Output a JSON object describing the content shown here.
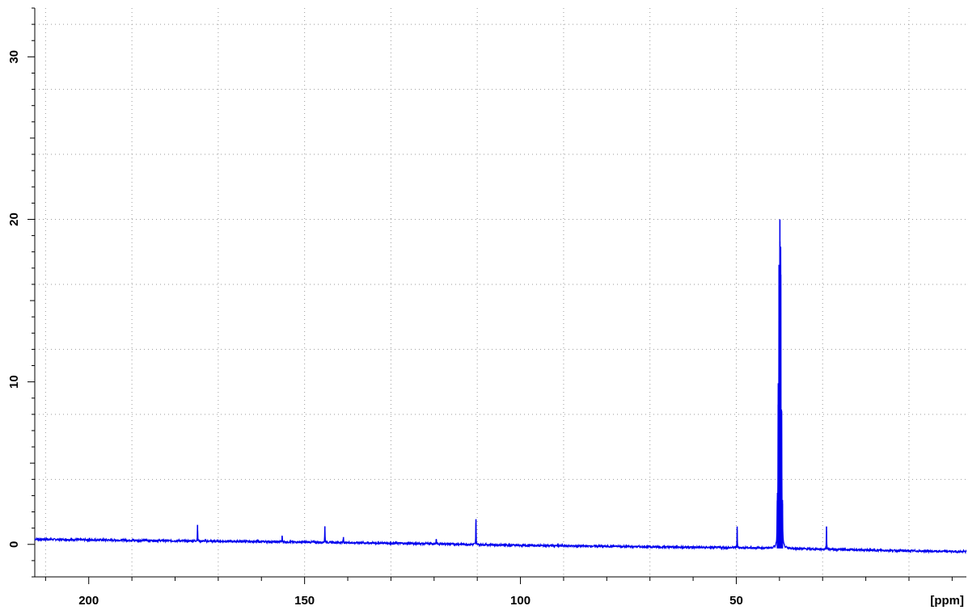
{
  "chart_data": {
    "type": "line",
    "title": "",
    "xlabel": "",
    "x_unit": "[ppm]",
    "ylabel": "",
    "xlim": [
      212.5,
      -3.3
    ],
    "ylim": [
      -2,
      33
    ],
    "x_reversed": true,
    "grid": true,
    "x_major_ticks": [
      200,
      150,
      100,
      50
    ],
    "y_major_ticks": [
      0,
      10,
      20,
      30
    ],
    "line_color": "#0000ee",
    "baseline": [
      {
        "x": 212.5,
        "y": 0.32
      },
      {
        "x": 180,
        "y": 0.22
      },
      {
        "x": 150,
        "y": 0.14
      },
      {
        "x": 120,
        "y": 0.04
      },
      {
        "x": 100,
        "y": -0.06
      },
      {
        "x": 80,
        "y": -0.12
      },
      {
        "x": 60,
        "y": -0.18
      },
      {
        "x": 45,
        "y": -0.22
      },
      {
        "x": 30,
        "y": -0.3
      },
      {
        "x": 10,
        "y": -0.4
      },
      {
        "x": -3.3,
        "y": -0.45
      }
    ],
    "peaks": [
      {
        "x": 174.8,
        "y": 1.2
      },
      {
        "x": 155.2,
        "y": 0.5
      },
      {
        "x": 145.3,
        "y": 1.1
      },
      {
        "x": 141.0,
        "y": 0.45
      },
      {
        "x": 119.5,
        "y": 0.3
      },
      {
        "x": 110.3,
        "y": 1.55
      },
      {
        "x": 49.8,
        "y": 1.1
      },
      {
        "x": 40.5,
        "y": 2.7
      },
      {
        "x": 40.3,
        "y": 8.6
      },
      {
        "x": 40.1,
        "y": 17.2
      },
      {
        "x": 39.9,
        "y": 20.0
      },
      {
        "x": 39.7,
        "y": 16.6
      },
      {
        "x": 39.5,
        "y": 8.2
      },
      {
        "x": 39.3,
        "y": 2.5
      },
      {
        "x": 29.1,
        "y": 1.1
      }
    ]
  }
}
